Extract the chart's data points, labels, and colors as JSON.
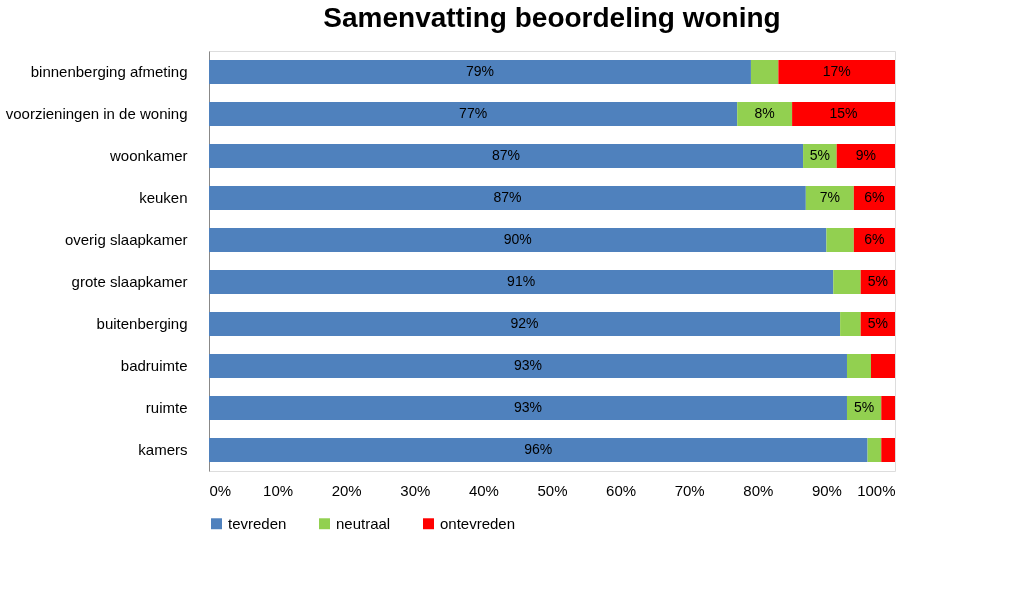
{
  "chart_data": {
    "type": "bar",
    "orientation": "horizontal",
    "stacked": true,
    "title": "Samenvatting beoordeling woning",
    "categories": [
      "binnenberging afmeting",
      "voorzieningen in de woning",
      "woonkamer",
      "keuken",
      "overig slaapkamer",
      "grote slaapkamer",
      "buitenberging",
      "badruimte",
      "ruimte",
      "kamers"
    ],
    "series": [
      {
        "name": "tevreden",
        "color": "#4f81bd",
        "values": [
          79,
          77,
          86.6,
          87,
          90,
          91,
          92,
          93,
          93,
          96
        ],
        "value_labels": [
          "79%",
          "77%",
          "87%",
          "87%",
          "90%",
          "91%",
          "92%",
          "93%",
          "93%",
          "96%"
        ]
      },
      {
        "name": "neutraal",
        "color": "#92d050",
        "values": [
          4,
          8,
          4.9,
          7,
          4,
          4,
          3,
          3.5,
          5,
          2
        ],
        "value_labels": [
          null,
          "8%",
          "5%",
          "7%",
          null,
          null,
          null,
          null,
          "5%",
          null
        ]
      },
      {
        "name": "ontevreden",
        "color": "#ff0000",
        "values": [
          17,
          15,
          8.5,
          6,
          6,
          5,
          5,
          3.5,
          2,
          2
        ],
        "value_labels": [
          "17%",
          "15%",
          "9%",
          "6%",
          "6%",
          "5%",
          "5%",
          null,
          null,
          null
        ]
      }
    ],
    "xlim": [
      0,
      100
    ],
    "xticks": [
      {
        "value": 0,
        "label": "0%"
      },
      {
        "value": 10,
        "label": "10%"
      },
      {
        "value": 20,
        "label": "20%"
      },
      {
        "value": 30,
        "label": "30%"
      },
      {
        "value": 40,
        "label": "40%"
      },
      {
        "value": 50,
        "label": "50%"
      },
      {
        "value": 60,
        "label": "60%"
      },
      {
        "value": 70,
        "label": "70%"
      },
      {
        "value": 80,
        "label": "80%"
      },
      {
        "value": 90,
        "label": "90%"
      },
      {
        "value": 100,
        "label": "100%"
      }
    ],
    "legend": "bottom",
    "grid": false
  }
}
